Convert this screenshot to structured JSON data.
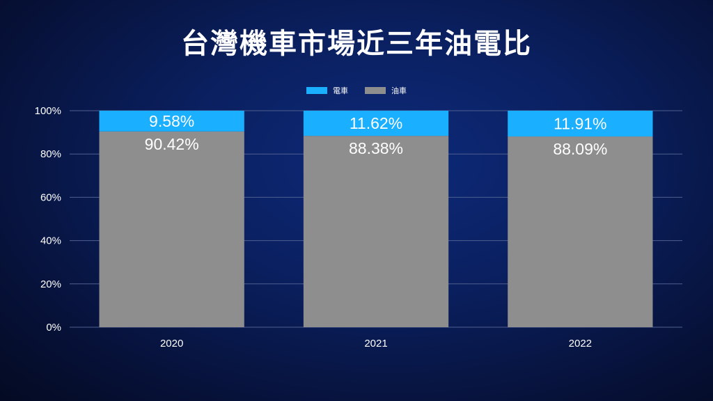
{
  "chart_data": {
    "type": "bar",
    "stacked": true,
    "title": "台灣機車市場近三年油電比",
    "categories": [
      "2020",
      "2021",
      "2022"
    ],
    "series": [
      {
        "name": "電車",
        "color": "#1ab0ff",
        "values": [
          9.58,
          11.62,
          11.91
        ],
        "labels": [
          "9.58%",
          "11.62%",
          "11.91%"
        ]
      },
      {
        "name": "油車",
        "color": "#8e8e8e",
        "values": [
          90.42,
          88.38,
          88.09
        ],
        "labels": [
          "90.42%",
          "88.38%",
          "88.09%"
        ]
      }
    ],
    "ylim": [
      0,
      100
    ],
    "yticks": [
      "0%",
      "20%",
      "40%",
      "60%",
      "80%",
      "100%"
    ],
    "grid": true,
    "legend_position": "top"
  }
}
